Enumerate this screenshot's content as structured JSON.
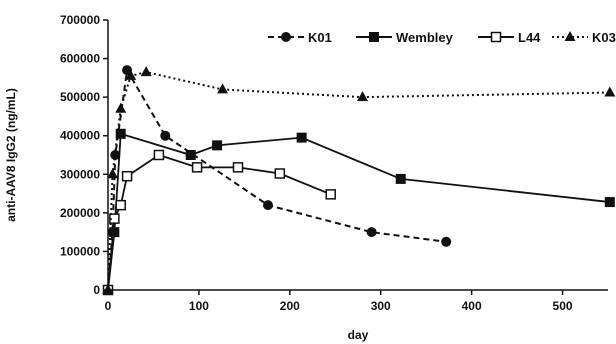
{
  "chart_data": {
    "type": "line",
    "title": "",
    "xlabel": "day",
    "ylabel": "anti-AAV8 IgG2 (ng/mL)",
    "xlim": [
      0,
      550
    ],
    "ylim": [
      0,
      700000
    ],
    "x_ticks": [
      0,
      100,
      200,
      300,
      400,
      500
    ],
    "y_ticks": [
      0,
      100000,
      200000,
      300000,
      400000,
      500000,
      600000,
      700000
    ],
    "x_tick_labels": [
      "0",
      "100",
      "200",
      "300",
      "400",
      "500"
    ],
    "y_tick_labels": [
      "0",
      "100000",
      "200000",
      "300000",
      "400000",
      "500000",
      "600000",
      "700000"
    ],
    "grid": false,
    "legend_position": "top-right",
    "series": [
      {
        "name": "K01",
        "marker": "filled-circle",
        "line": "dashed",
        "color": "#111111",
        "points": [
          [
            0,
            0
          ],
          [
            5,
            150000
          ],
          [
            8,
            350000
          ],
          [
            21,
            570000
          ],
          [
            63,
            400000
          ],
          [
            176,
            220000
          ],
          [
            290,
            150000
          ],
          [
            372,
            125000
          ]
        ]
      },
      {
        "name": "Wembley",
        "marker": "filled-square",
        "line": "solid",
        "color": "#111111",
        "points": [
          [
            0,
            0
          ],
          [
            7,
            150000
          ],
          [
            14,
            405000
          ],
          [
            91,
            350000
          ],
          [
            120,
            375000
          ],
          [
            213,
            395000
          ],
          [
            322,
            288000
          ],
          [
            552,
            228000
          ]
        ]
      },
      {
        "name": "L44",
        "marker": "open-square",
        "line": "solid",
        "color": "#111111",
        "points": [
          [
            0,
            0
          ],
          [
            7,
            185000
          ],
          [
            14,
            220000
          ],
          [
            21,
            295000
          ],
          [
            56,
            350000
          ],
          [
            98,
            318000
          ],
          [
            143,
            318000
          ],
          [
            189,
            302000
          ],
          [
            245,
            248000
          ]
        ]
      },
      {
        "name": "K03",
        "marker": "filled-triangle",
        "line": "dotted",
        "color": "#111111",
        "points": [
          [
            0,
            0
          ],
          [
            5,
            300000
          ],
          [
            14,
            470000
          ],
          [
            25,
            555000
          ],
          [
            42,
            565000
          ],
          [
            126,
            520000
          ],
          [
            280,
            500000
          ],
          [
            552,
            512000
          ]
        ]
      }
    ]
  }
}
